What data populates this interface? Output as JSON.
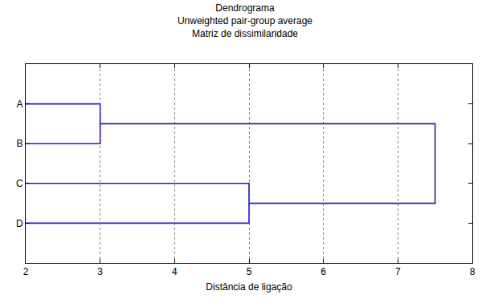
{
  "chart_data": {
    "type": "dendrogram",
    "title": "Dendrograma",
    "subtitle": [
      "Unweighted pair-group average",
      "Matriz de dissimilaridade"
    ],
    "x_label": "Distância de ligação",
    "categories": [
      "A",
      "B",
      "C",
      "D"
    ],
    "merges": [
      {
        "left": [
          "A"
        ],
        "right": [
          "B"
        ],
        "value": 3
      },
      {
        "left": [
          "C"
        ],
        "right": [
          "D"
        ],
        "value": 5
      },
      {
        "left": [
          "A",
          "B"
        ],
        "right": [
          "C",
          "D"
        ],
        "value": 7.5
      }
    ],
    "xlim": [
      2,
      8
    ],
    "xticks": [
      2,
      3,
      4,
      5,
      6,
      7,
      8
    ],
    "grid": true,
    "color": "#1f1fbf",
    "line_style": "solid"
  }
}
